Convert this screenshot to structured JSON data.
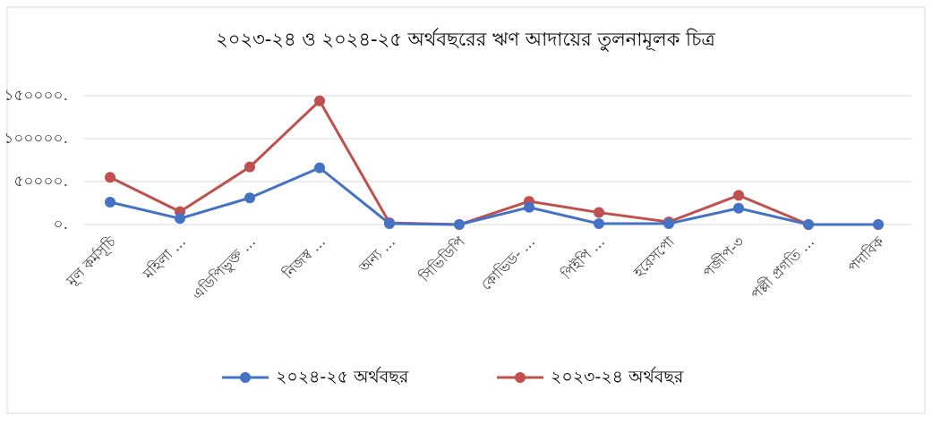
{
  "chart_data": {
    "type": "line",
    "title": "২০২৩-২৪ ও ২০২৪-২৫ অর্থবছরের ঋণ আদায়ের তুলনামূলক চিত্র",
    "categories": [
      "মূল কর্মসূচি",
      "মহিলা ...",
      "এডিপিভুক্ত ...",
      "নিজস্ব ...",
      "অন্য ...",
      "সিভিডিপি",
      "কোভিড- ...",
      "পিইপি ...",
      "হরেসপো",
      "পজীপ-৩",
      "পল্লী প্রগতি ...",
      "পদাবিক"
    ],
    "series": [
      {
        "name": "২০২৪-২৫ অর্থবছর",
        "color": "#4472c4",
        "values": [
          26000,
          7000,
          31000,
          66000,
          1000,
          0,
          20000,
          1000,
          1000,
          19000,
          0,
          0
        ]
      },
      {
        "name": "২০২৩-২৪ অর্থবছর",
        "color": "#c0504d",
        "values": [
          55000,
          15000,
          67000,
          144000,
          2000,
          0,
          27000,
          14000,
          3000,
          34000,
          0,
          0
        ]
      }
    ],
    "ylim": [
      0,
      150000
    ],
    "yticks": [
      {
        "value": 0,
        "label": "০."
      },
      {
        "value": 50000,
        "label": "৫০০০০."
      },
      {
        "value": 100000,
        "label": "১০০০০০."
      },
      {
        "value": 150000,
        "label": "১৫০০০০."
      }
    ],
    "grid": true,
    "legend": "bottom"
  }
}
